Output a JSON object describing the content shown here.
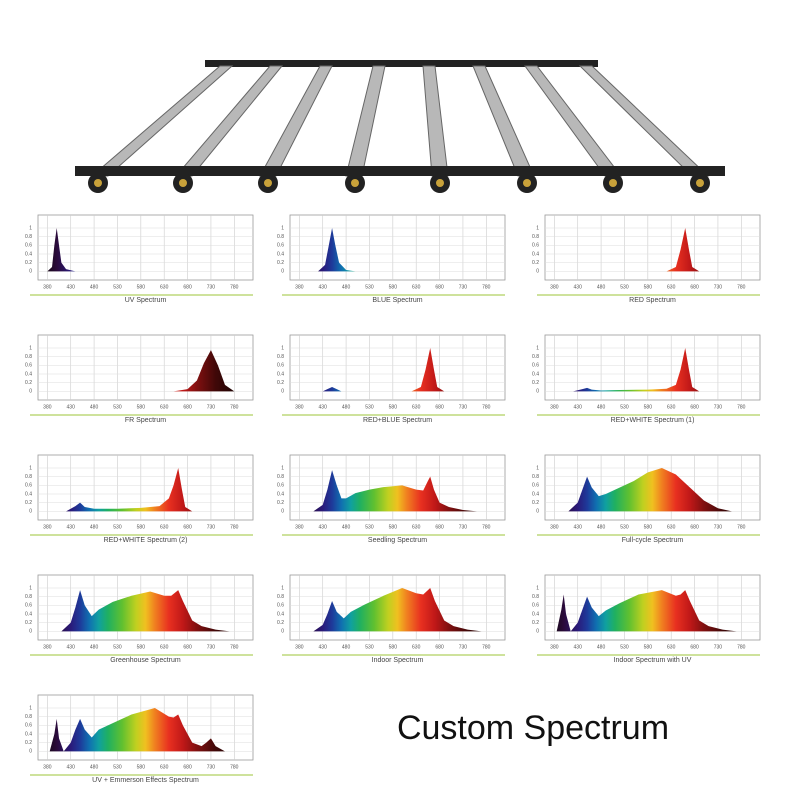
{
  "chart_data": [
    {
      "type": "area",
      "title": "UV Spectrum",
      "x": [
        380,
        390,
        395,
        400,
        405,
        410,
        420,
        440
      ],
      "values": [
        0,
        0.1,
        0.6,
        1,
        0.6,
        0.2,
        0.05,
        0
      ],
      "xlim": [
        360,
        820
      ],
      "ylim": [
        -0.2,
        1.3
      ],
      "xticks": [
        380,
        430,
        480,
        530,
        580,
        630,
        680,
        730,
        780
      ],
      "yticks": [
        0,
        0.2,
        0.4,
        0.6,
        0.8,
        1
      ],
      "grid": true
    },
    {
      "type": "area",
      "title": "BLUE Spectrum",
      "x": [
        420,
        435,
        443,
        450,
        457,
        465,
        480,
        500
      ],
      "values": [
        0,
        0.15,
        0.6,
        1,
        0.6,
        0.2,
        0.03,
        0
      ],
      "xlim": [
        360,
        820
      ],
      "ylim": [
        -0.2,
        1.3
      ],
      "xticks": [
        380,
        430,
        480,
        530,
        580,
        630,
        680,
        730,
        780
      ],
      "yticks": [
        0,
        0.2,
        0.4,
        0.6,
        0.8,
        1
      ],
      "grid": true
    },
    {
      "type": "area",
      "title": "RED Spectrum",
      "x": [
        620,
        640,
        650,
        660,
        668,
        675,
        690
      ],
      "values": [
        0,
        0.1,
        0.5,
        1,
        0.5,
        0.1,
        0
      ],
      "xlim": [
        360,
        820
      ],
      "ylim": [
        -0.2,
        1.3
      ],
      "xticks": [
        380,
        430,
        480,
        530,
        580,
        630,
        680,
        730,
        780
      ],
      "yticks": [
        0,
        0.2,
        0.4,
        0.6,
        0.8,
        1
      ],
      "grid": true
    },
    {
      "type": "area",
      "title": "FR Spectrum",
      "x": [
        650,
        680,
        700,
        715,
        730,
        745,
        760,
        780
      ],
      "values": [
        0,
        0.05,
        0.25,
        0.65,
        0.95,
        0.6,
        0.15,
        0
      ],
      "xlim": [
        360,
        820
      ],
      "ylim": [
        -0.2,
        1.3
      ],
      "xticks": [
        380,
        430,
        480,
        530,
        580,
        630,
        680,
        730,
        780
      ],
      "yticks": [
        0,
        0.2,
        0.4,
        0.6,
        0.8,
        1
      ],
      "grid": true
    },
    {
      "type": "area",
      "title": "RED+BLUE Spectrum",
      "x": [
        430,
        440,
        450,
        460,
        470,
        620,
        640,
        650,
        660,
        668,
        675,
        690
      ],
      "values": [
        0,
        0.05,
        0.1,
        0.05,
        0,
        0,
        0.1,
        0.5,
        1,
        0.5,
        0.1,
        0
      ],
      "xlim": [
        360,
        820
      ],
      "ylim": [
        -0.2,
        1.3
      ],
      "xticks": [
        380,
        430,
        480,
        530,
        580,
        630,
        680,
        730,
        780
      ],
      "yticks": [
        0,
        0.2,
        0.4,
        0.6,
        0.8,
        1
      ],
      "grid": true
    },
    {
      "type": "area",
      "title": "RED+WHITE Spectrum (1)",
      "x": [
        420,
        440,
        450,
        460,
        480,
        520,
        580,
        620,
        640,
        650,
        660,
        668,
        675,
        690
      ],
      "values": [
        0,
        0.05,
        0.08,
        0.04,
        0.02,
        0.03,
        0.04,
        0.06,
        0.15,
        0.5,
        1,
        0.5,
        0.1,
        0
      ],
      "xlim": [
        360,
        820
      ],
      "ylim": [
        -0.2,
        1.3
      ],
      "xticks": [
        380,
        430,
        480,
        530,
        580,
        630,
        680,
        730,
        780
      ],
      "yticks": [
        0,
        0.2,
        0.4,
        0.6,
        0.8,
        1
      ],
      "grid": true
    },
    {
      "type": "area",
      "title": "RED+WHITE Spectrum (2)",
      "x": [
        420,
        440,
        450,
        460,
        480,
        530,
        580,
        620,
        640,
        650,
        660,
        668,
        675,
        690
      ],
      "values": [
        0,
        0.12,
        0.2,
        0.1,
        0.06,
        0.06,
        0.08,
        0.12,
        0.3,
        0.6,
        1,
        0.5,
        0.1,
        0
      ],
      "xlim": [
        360,
        820
      ],
      "ylim": [
        -0.2,
        1.3
      ],
      "xticks": [
        380,
        430,
        480,
        530,
        580,
        630,
        680,
        730,
        780
      ],
      "yticks": [
        0,
        0.2,
        0.4,
        0.6,
        0.8,
        1
      ],
      "grid": true
    },
    {
      "type": "area",
      "title": "Seedling Spectrum",
      "x": [
        410,
        430,
        440,
        450,
        460,
        470,
        480,
        500,
        530,
        560,
        600,
        630,
        645,
        655,
        660,
        668,
        680,
        700,
        730,
        760
      ],
      "values": [
        0,
        0.15,
        0.5,
        0.95,
        0.6,
        0.3,
        0.3,
        0.42,
        0.5,
        0.56,
        0.6,
        0.5,
        0.48,
        0.7,
        0.8,
        0.5,
        0.2,
        0.1,
        0.03,
        0
      ],
      "xlim": [
        360,
        820
      ],
      "ylim": [
        -0.2,
        1.3
      ],
      "xticks": [
        380,
        430,
        480,
        530,
        580,
        630,
        680,
        730,
        780
      ],
      "yticks": [
        0,
        0.2,
        0.4,
        0.6,
        0.8,
        1
      ],
      "grid": true
    },
    {
      "type": "area",
      "title": "Full-cycle Spectrum",
      "x": [
        410,
        430,
        440,
        450,
        460,
        475,
        490,
        520,
        550,
        580,
        610,
        640,
        670,
        700,
        730,
        760
      ],
      "values": [
        0,
        0.2,
        0.5,
        0.8,
        0.55,
        0.35,
        0.4,
        0.55,
        0.7,
        0.9,
        1,
        0.85,
        0.55,
        0.25,
        0.07,
        0
      ],
      "xlim": [
        360,
        820
      ],
      "ylim": [
        -0.2,
        1.3
      ],
      "xticks": [
        380,
        430,
        480,
        530,
        580,
        630,
        680,
        730,
        780
      ],
      "yticks": [
        0,
        0.2,
        0.4,
        0.6,
        0.8,
        1
      ],
      "grid": true
    },
    {
      "type": "area",
      "title": "Greenhouse Spectrum",
      "x": [
        410,
        430,
        440,
        450,
        460,
        475,
        490,
        520,
        560,
        600,
        630,
        645,
        660,
        670,
        690,
        710,
        740,
        770
      ],
      "values": [
        0,
        0.2,
        0.55,
        0.95,
        0.6,
        0.35,
        0.5,
        0.68,
        0.82,
        0.92,
        0.82,
        0.82,
        0.95,
        0.7,
        0.25,
        0.12,
        0.04,
        0
      ],
      "xlim": [
        360,
        820
      ],
      "ylim": [
        -0.2,
        1.3
      ],
      "xticks": [
        380,
        430,
        480,
        530,
        580,
        630,
        680,
        730,
        780
      ],
      "yticks": [
        0,
        0.2,
        0.4,
        0.6,
        0.8,
        1
      ],
      "grid": true
    },
    {
      "type": "area",
      "title": "Indoor Spectrum",
      "x": [
        410,
        430,
        440,
        450,
        460,
        475,
        490,
        520,
        560,
        600,
        630,
        645,
        660,
        670,
        690,
        710,
        740,
        770
      ],
      "values": [
        0,
        0.15,
        0.4,
        0.7,
        0.45,
        0.3,
        0.45,
        0.62,
        0.82,
        1,
        0.88,
        0.85,
        1,
        0.7,
        0.25,
        0.12,
        0.04,
        0
      ],
      "xlim": [
        360,
        820
      ],
      "ylim": [
        -0.2,
        1.3
      ],
      "xticks": [
        380,
        430,
        480,
        530,
        580,
        630,
        680,
        730,
        780
      ],
      "yticks": [
        0,
        0.2,
        0.4,
        0.6,
        0.8,
        1
      ],
      "grid": true
    },
    {
      "type": "area",
      "title": "Indoor Spectrum with UV",
      "x": [
        385,
        395,
        400,
        405,
        415,
        430,
        440,
        450,
        460,
        475,
        490,
        520,
        560,
        610,
        640,
        650,
        660,
        670,
        690,
        710,
        740,
        770
      ],
      "values": [
        0,
        0.5,
        0.85,
        0.4,
        0,
        0.2,
        0.5,
        0.8,
        0.55,
        0.35,
        0.48,
        0.65,
        0.85,
        0.95,
        0.82,
        0.85,
        0.95,
        0.7,
        0.25,
        0.12,
        0.04,
        0
      ],
      "xlim": [
        360,
        820
      ],
      "ylim": [
        -0.2,
        1.3
      ],
      "xticks": [
        380,
        430,
        480,
        530,
        580,
        630,
        680,
        730,
        780
      ],
      "yticks": [
        0,
        0.2,
        0.4,
        0.6,
        0.8,
        1
      ],
      "grid": true
    },
    {
      "type": "area",
      "title": "UV + Emmerson Effects Spectrum",
      "x": [
        385,
        395,
        400,
        405,
        415,
        430,
        440,
        450,
        460,
        475,
        490,
        520,
        560,
        610,
        640,
        650,
        660,
        670,
        690,
        710,
        720,
        730,
        740,
        760
      ],
      "values": [
        0,
        0.4,
        0.75,
        0.3,
        0,
        0.2,
        0.5,
        0.75,
        0.5,
        0.32,
        0.5,
        0.65,
        0.85,
        1,
        0.8,
        0.78,
        0.85,
        0.6,
        0.2,
        0.12,
        0.2,
        0.3,
        0.12,
        0
      ],
      "xlim": [
        360,
        820
      ],
      "ylim": [
        -0.2,
        1.3
      ],
      "xticks": [
        380,
        430,
        480,
        530,
        580,
        630,
        680,
        730,
        780
      ],
      "yticks": [
        0,
        0.2,
        0.4,
        0.6,
        0.8,
        1
      ],
      "grid": true
    }
  ],
  "caption": "Custom Spectrum"
}
